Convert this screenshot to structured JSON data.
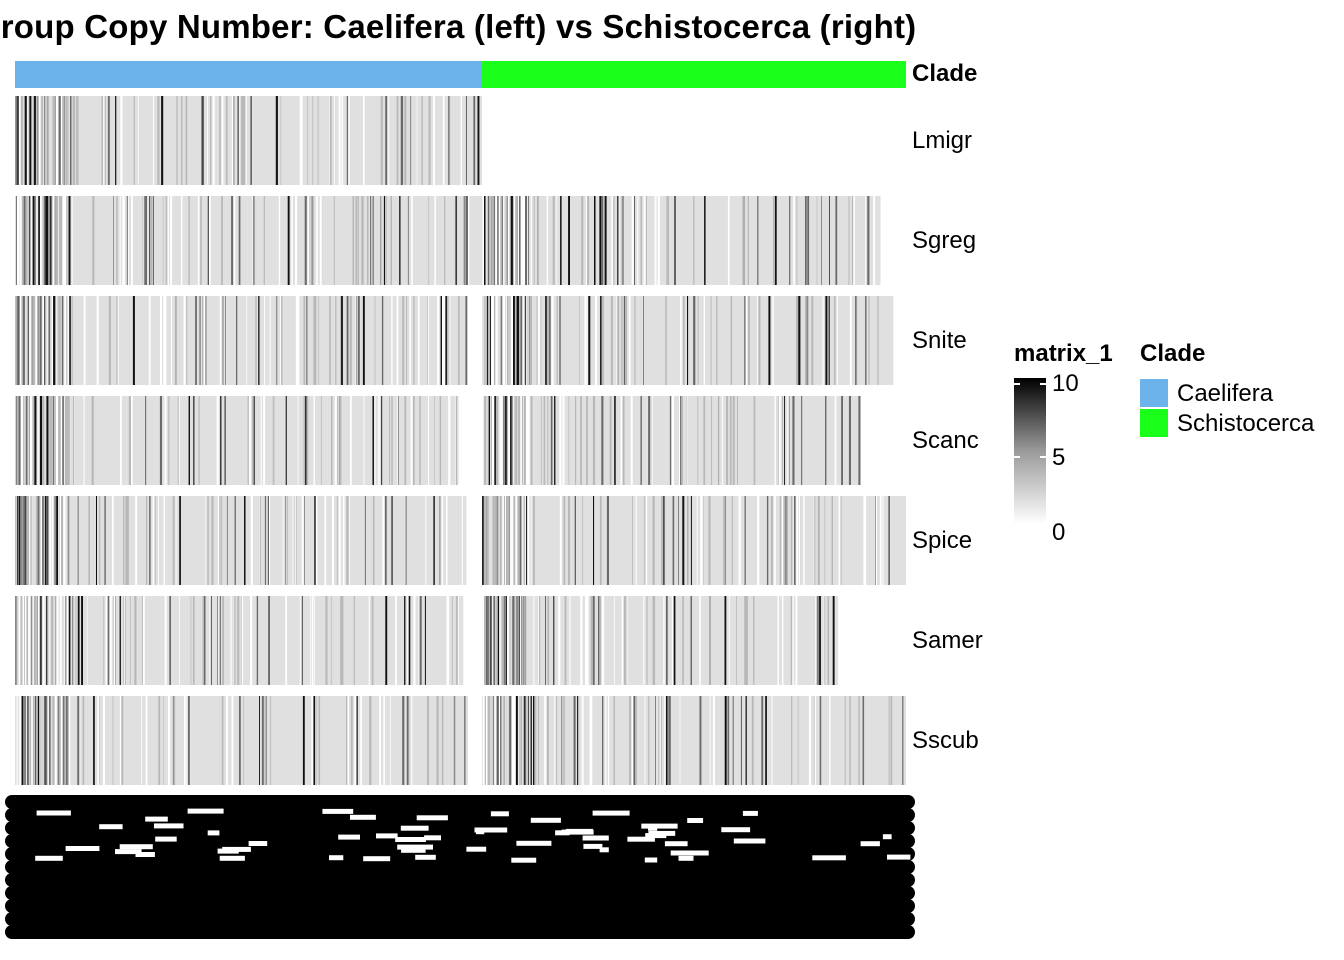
{
  "title": "ogroup Copy Number: Caelifera (left) vs Schistocerca (right)",
  "colors": {
    "caelifera": "#6cb2eb",
    "schistocerca": "#1aff1a",
    "background_cell": "#e0e0e0",
    "high": "#000000",
    "low": "#ffffff"
  },
  "chart_data": {
    "type": "heatmap",
    "title": "ogroup Copy Number: Caelifera (left) vs Schistocerca (right)",
    "rows": [
      "Lmigr",
      "Sgreg",
      "Snite",
      "Scanc",
      "Spice",
      "Samer",
      "Sscub"
    ],
    "column_annotation": {
      "name": "Clade",
      "groups": [
        {
          "name": "Caelifera",
          "share": 0.525
        },
        {
          "name": "Schistocerca",
          "share": 0.475
        }
      ]
    },
    "value_scale": {
      "name": "matrix_1",
      "min": 0,
      "max": 10,
      "ticks": [
        10,
        5,
        0
      ]
    },
    "row_coverage": [
      {
        "row": "Lmigr",
        "caelifera": 1.0,
        "schistocerca": 0.0
      },
      {
        "row": "Sgreg",
        "caelifera": 1.0,
        "schistocerca": 0.94
      },
      {
        "row": "Snite",
        "caelifera": 0.97,
        "schistocerca": 0.97
      },
      {
        "row": "Scanc",
        "caelifera": 0.95,
        "schistocerca": 0.89
      },
      {
        "row": "Spice",
        "caelifera": 0.97,
        "schistocerca": 1.0
      },
      {
        "row": "Samer",
        "caelifera": 0.96,
        "schistocerca": 0.84
      },
      {
        "row": "Sscub",
        "caelifera": 0.97,
        "schistocerca": 1.0
      }
    ],
    "legend": {
      "title": "Clade",
      "entries": [
        "Caelifera",
        "Schistocerca"
      ],
      "placement": "right"
    }
  },
  "legend_matrix": {
    "title": "matrix_1",
    "ticks": [
      "10",
      "5",
      "0"
    ]
  },
  "legend_clade": {
    "title": "Clade",
    "entries": [
      "Caelifera",
      "Schistocerca"
    ]
  },
  "annotation_label": "Clade"
}
